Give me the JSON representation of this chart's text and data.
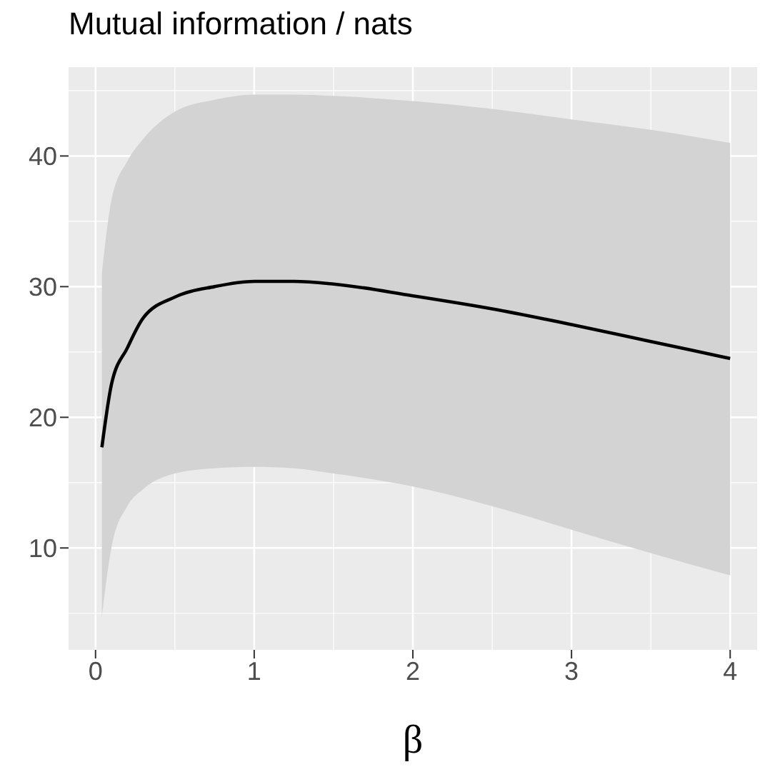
{
  "chart_data": {
    "type": "line",
    "title": "Mutual information / nats",
    "xlabel": "β",
    "x": [
      0.04,
      0.1,
      0.2,
      0.3,
      0.5,
      0.75,
      1.0,
      1.25,
      1.5,
      2.0,
      2.5,
      3.0,
      3.5,
      4.0
    ],
    "series": [
      {
        "color": "#000000",
        "values": [
          17.7,
          22.5,
          25.3,
          27.6,
          29.2,
          30.0,
          30.4,
          30.4,
          30.2,
          29.3,
          28.3,
          27.1,
          25.8,
          24.5
        ],
        "lower": [
          4.7,
          10.0,
          13.2,
          14.5,
          15.7,
          16.1,
          16.2,
          16.1,
          15.7,
          14.7,
          13.2,
          11.4,
          9.6,
          7.9
        ],
        "upper": [
          31.0,
          36.6,
          39.6,
          41.3,
          43.4,
          44.3,
          44.7,
          44.7,
          44.6,
          44.2,
          43.6,
          42.8,
          42.0,
          41.0
        ]
      }
    ],
    "xlim": [
      -0.17,
      4.17
    ],
    "xticks": [
      0,
      1,
      2,
      3,
      4
    ],
    "ylim": [
      2.2,
      46.8
    ],
    "yticks": [
      10,
      20,
      30,
      40
    ],
    "grid": true
  }
}
